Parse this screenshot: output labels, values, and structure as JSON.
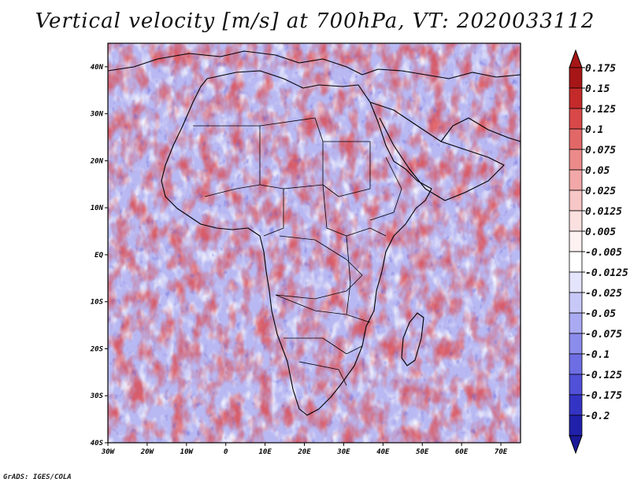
{
  "title": "Vertical velocity [m/s] at 700hPa, VT: 2020033112",
  "footer": "GrADS: IGES/COLA",
  "map": {
    "variable": "Vertical velocity",
    "units": "m/s",
    "level": "700hPa",
    "valid_time": "2020033112",
    "lon_range": [
      -30,
      75
    ],
    "lat_range": [
      -40,
      45
    ],
    "lat_ticks": [
      {
        "value": 40,
        "label": "40N"
      },
      {
        "value": 30,
        "label": "30N"
      },
      {
        "value": 20,
        "label": "20N"
      },
      {
        "value": 10,
        "label": "10N"
      },
      {
        "value": 0,
        "label": "EQ"
      },
      {
        "value": -10,
        "label": "10S"
      },
      {
        "value": -20,
        "label": "20S"
      },
      {
        "value": -30,
        "label": "30S"
      },
      {
        "value": -40,
        "label": "40S"
      }
    ],
    "lon_ticks": [
      {
        "value": -30,
        "label": "30W"
      },
      {
        "value": -20,
        "label": "20W"
      },
      {
        "value": -10,
        "label": "10W"
      },
      {
        "value": 0,
        "label": "0"
      },
      {
        "value": 10,
        "label": "10E"
      },
      {
        "value": 20,
        "label": "20E"
      },
      {
        "value": 30,
        "label": "30E"
      },
      {
        "value": 40,
        "label": "40E"
      },
      {
        "value": 50,
        "label": "50E"
      },
      {
        "value": 60,
        "label": "60E"
      },
      {
        "value": 70,
        "label": "70E"
      }
    ]
  },
  "colorbar": {
    "levels": [
      {
        "label": "0.175",
        "color": "#a61616"
      },
      {
        "label": "0.15",
        "color": "#c42a2a"
      },
      {
        "label": "0.125",
        "color": "#d84848"
      },
      {
        "label": "0.1",
        "color": "#e26868"
      },
      {
        "label": "0.075",
        "color": "#ec8a8a"
      },
      {
        "label": "0.05",
        "color": "#f2a8a8"
      },
      {
        "label": "0.025",
        "color": "#f7c6c6"
      },
      {
        "label": "0.0125",
        "color": "#fbe0e0"
      },
      {
        "label": "0.005",
        "color": "#fdf1f1"
      },
      {
        "label": "-0.005",
        "color": "#ffffff"
      },
      {
        "label": "-0.0125",
        "color": "#e4e4fc"
      },
      {
        "label": "-0.025",
        "color": "#c8c8f8"
      },
      {
        "label": "-0.05",
        "color": "#aaaaf2"
      },
      {
        "label": "-0.075",
        "color": "#8c8cec"
      },
      {
        "label": "-0.1",
        "color": "#6e6ee4"
      },
      {
        "label": "-0.125",
        "color": "#5050d8"
      },
      {
        "label": "-0.175",
        "color": "#3434c4"
      },
      {
        "label": "-0.2",
        "color": "#2020aa"
      }
    ],
    "top_color": "#a61616",
    "bottom_color": "#1a1a9a"
  },
  "colors": {
    "positive": "#d84848",
    "negative": "#6e6ee4",
    "neutral": "#ffffff",
    "coastline": "#000000"
  }
}
